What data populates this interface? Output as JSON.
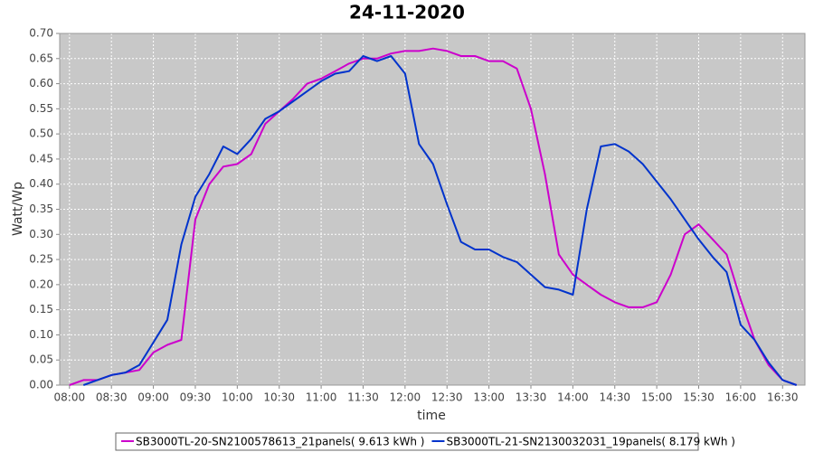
{
  "chart_data": {
    "type": "line",
    "title": "24-11-2020",
    "x_label": "time",
    "y_label": "Watt/Wp",
    "x": [
      "08:00",
      "08:10",
      "08:20",
      "08:30",
      "08:40",
      "08:50",
      "09:00",
      "09:10",
      "09:20",
      "09:30",
      "09:40",
      "09:50",
      "10:00",
      "10:10",
      "10:20",
      "10:30",
      "10:40",
      "10:50",
      "11:00",
      "11:10",
      "11:20",
      "11:30",
      "11:40",
      "11:50",
      "12:00",
      "12:10",
      "12:20",
      "12:30",
      "12:40",
      "12:50",
      "13:00",
      "13:10",
      "13:20",
      "13:30",
      "13:40",
      "13:50",
      "14:00",
      "14:10",
      "14:20",
      "14:30",
      "14:40",
      "14:50",
      "15:00",
      "15:10",
      "15:20",
      "15:30",
      "15:40",
      "15:50",
      "16:00",
      "16:10",
      "16:20",
      "16:30",
      "16:40"
    ],
    "series": [
      {
        "name": "SB3000TL-20-SN2100578613_21panels( 9.613 kWh )",
        "color": "#cc00cc",
        "values": [
          0.0,
          0.01,
          0.01,
          0.02,
          0.025,
          0.03,
          0.065,
          0.08,
          0.09,
          0.33,
          0.4,
          0.435,
          0.44,
          0.46,
          0.52,
          0.545,
          0.57,
          0.6,
          0.61,
          0.625,
          0.64,
          0.65,
          0.65,
          0.66,
          0.665,
          0.665,
          0.67,
          0.665,
          0.655,
          0.655,
          0.645,
          0.645,
          0.63,
          0.55,
          0.42,
          0.26,
          0.22,
          0.2,
          0.18,
          0.165,
          0.155,
          0.155,
          0.165,
          0.22,
          0.3,
          0.32,
          0.29,
          0.26,
          0.17,
          0.09,
          0.04,
          0.01,
          0.0
        ]
      },
      {
        "name": "SB3000TL-21-SN2130032031_19panels( 8.179 kWh )",
        "color": "#0033cc",
        "values": [
          null,
          0.0,
          0.01,
          0.02,
          0.025,
          0.04,
          0.085,
          0.13,
          0.28,
          0.375,
          0.42,
          0.475,
          0.46,
          0.49,
          0.53,
          0.545,
          0.565,
          0.585,
          0.605,
          0.62,
          0.625,
          0.655,
          0.645,
          0.655,
          0.62,
          0.48,
          0.44,
          0.36,
          0.285,
          0.27,
          0.27,
          0.255,
          0.245,
          0.22,
          0.195,
          0.19,
          0.18,
          0.35,
          0.475,
          0.48,
          0.465,
          0.44,
          0.405,
          0.37,
          0.33,
          0.29,
          0.255,
          0.225,
          0.12,
          0.09,
          0.045,
          0.01,
          0.0
        ]
      }
    ],
    "xlim": [
      "07:53",
      "16:46"
    ],
    "xticks": [
      "08:00",
      "08:30",
      "09:00",
      "09:30",
      "10:00",
      "10:30",
      "11:00",
      "11:30",
      "12:00",
      "12:30",
      "13:00",
      "13:30",
      "14:00",
      "14:30",
      "15:00",
      "15:30",
      "16:00",
      "16:30"
    ],
    "ylim": [
      0,
      0.7
    ],
    "yticks": [
      {
        "value": 0,
        "label": "0.00"
      },
      0.05,
      {
        "value": 0.1,
        "label": "0.10"
      },
      0.15,
      {
        "value": 0.2,
        "label": "0.20"
      },
      0.25,
      {
        "value": 0.3,
        "label": "0.30"
      },
      0.35,
      {
        "value": 0.4,
        "label": "0.40"
      },
      0.45,
      {
        "value": 0.5,
        "label": "0.50"
      },
      0.55,
      {
        "value": 0.6,
        "label": "0.60"
      },
      0.65,
      {
        "value": 0.7,
        "label": "0.70"
      }
    ],
    "grid": true,
    "legend": "bottom"
  }
}
